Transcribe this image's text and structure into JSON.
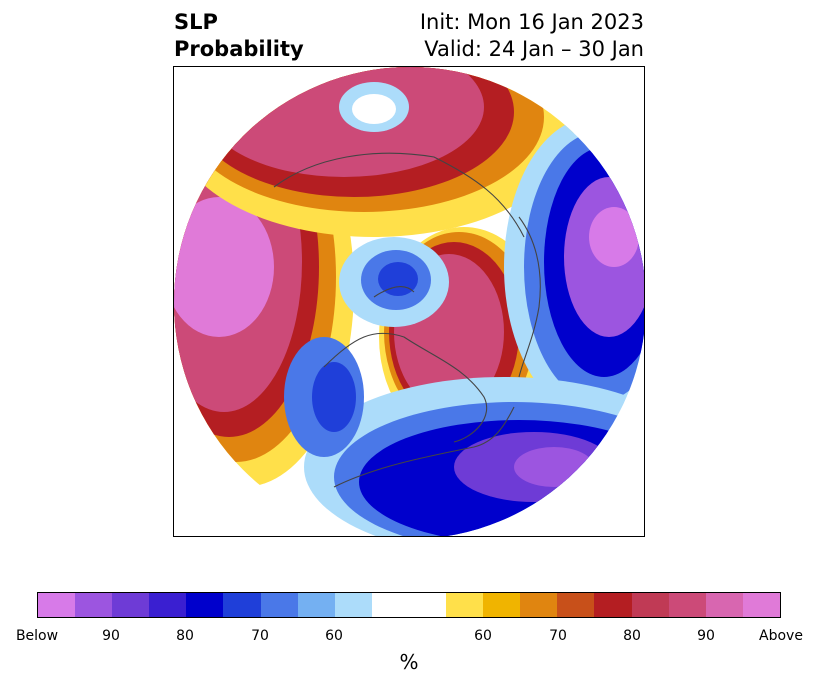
{
  "title": {
    "left_line1": "SLP",
    "left_line2": "Probability",
    "right_line1": "Init: Mon 16 Jan 2023",
    "right_line2": "Valid: 24 Jan – 30 Jan"
  },
  "colorbar": {
    "label": "%",
    "ticks": [
      "Below",
      "90",
      "80",
      "70",
      "60",
      "60",
      "70",
      "80",
      "90",
      "Above"
    ],
    "colors": [
      "#d77ae8",
      "#9c55e0",
      "#6e3bd6",
      "#3a1fd1",
      "#0000cc",
      "#1f3fd9",
      "#4a78e8",
      "#74b0f2",
      "#acdcfa",
      "#ffffff",
      "#ffe04a",
      "#f0b400",
      "#e08510",
      "#c8501a",
      "#b41e22",
      "#c03a55",
      "#cc4a78",
      "#d866b0",
      "#e07ad8"
    ]
  },
  "map": {
    "projection": "north-polar-stereographic",
    "field": "sea-level-pressure-probability"
  }
}
